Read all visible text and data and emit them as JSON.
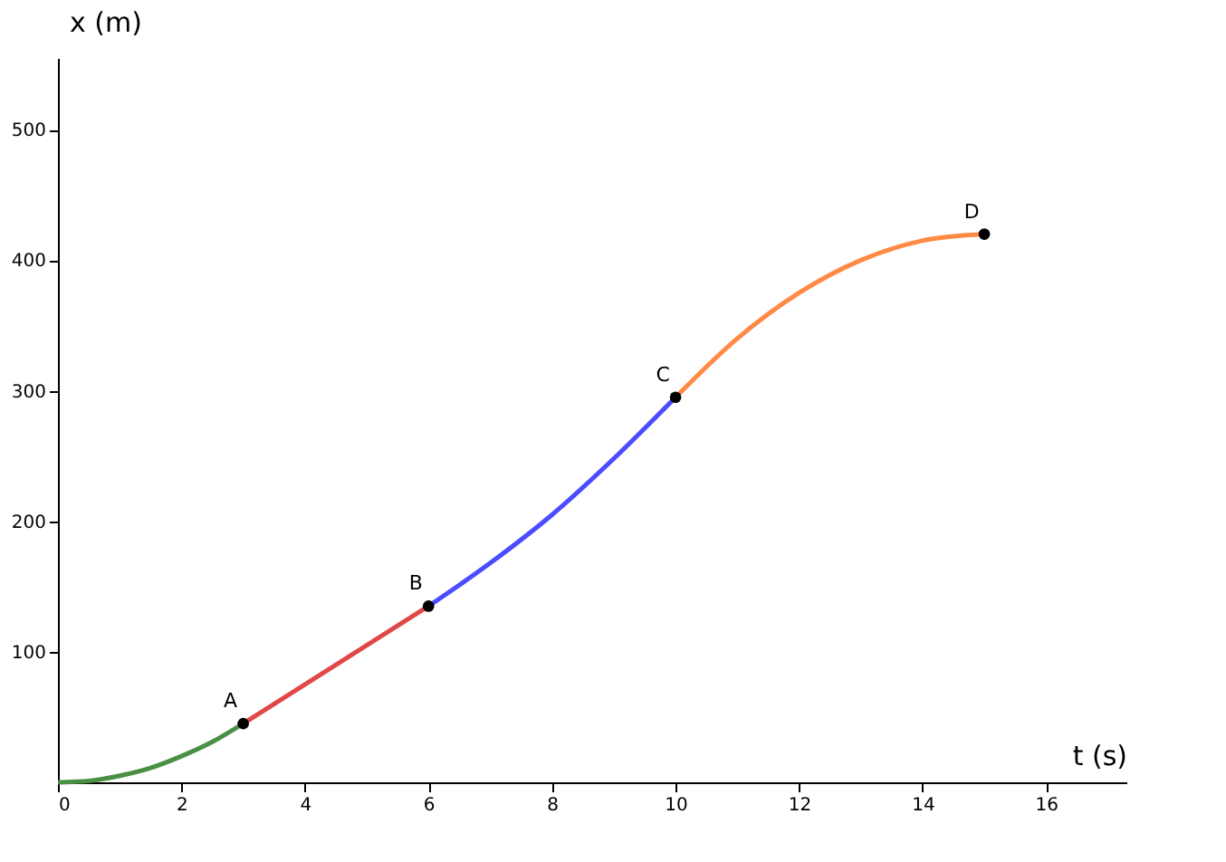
{
  "chart_data": {
    "type": "line",
    "xlabel": "t (s)",
    "ylabel": "x (m)",
    "xlim": [
      0,
      17.3
    ],
    "ylim": [
      0,
      555
    ],
    "xticks": [
      0,
      2,
      4,
      6,
      8,
      10,
      12,
      14,
      16
    ],
    "yticks": [
      100,
      200,
      300,
      400,
      500
    ],
    "grid": false,
    "marker": "none",
    "line_style": "solid",
    "series": [
      {
        "color": "#4a9044",
        "x": [
          0,
          0.5,
          1,
          1.5,
          2,
          2.5,
          3
        ],
        "values": [
          0,
          1,
          5,
          11,
          20,
          31,
          45
        ]
      },
      {
        "color": "#e04848",
        "x": [
          3,
          6
        ],
        "values": [
          45,
          135
        ]
      },
      {
        "color": "#4b4bff",
        "x": [
          6,
          7,
          8,
          9,
          10
        ],
        "values": [
          135,
          168,
          205,
          248,
          295
        ]
      },
      {
        "color": "#ff8a45",
        "x": [
          10,
          11,
          12,
          13,
          14,
          15
        ],
        "values": [
          295,
          340,
          375,
          400,
          415,
          420
        ]
      },
      {
        "type": "scatter",
        "marker": "circle",
        "color": "#000000",
        "x": [
          3,
          6,
          10,
          15
        ],
        "values": [
          45,
          135,
          295,
          420
        ]
      }
    ],
    "annotations": [
      {
        "text": "A",
        "x": 3,
        "y": 45
      },
      {
        "text": "B",
        "x": 6,
        "y": 135
      },
      {
        "text": "C",
        "x": 10,
        "y": 295
      },
      {
        "text": "D",
        "x": 15,
        "y": 420
      }
    ]
  }
}
